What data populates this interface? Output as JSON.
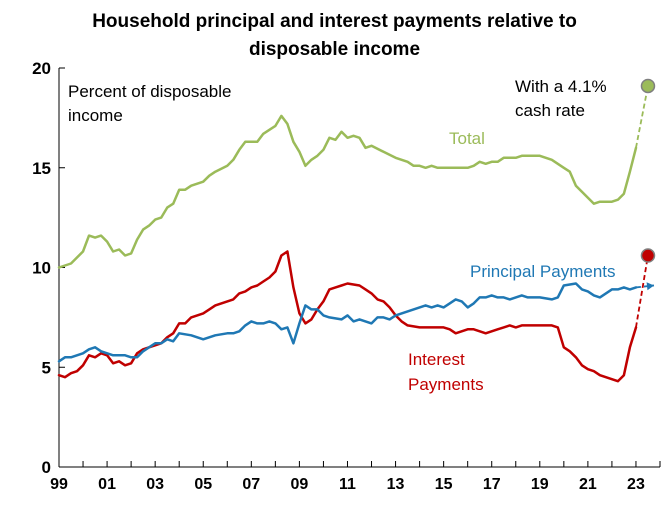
{
  "chart_data": {
    "type": "line",
    "title_line1": "Household principal and interest payments relative to",
    "title_line2": "disposable income",
    "ylabel_line1": "Percent of disposable",
    "ylabel_line2": "income",
    "ylim": [
      0,
      20
    ],
    "yticks": [
      "0",
      "5",
      "10",
      "15",
      "20"
    ],
    "xlim": [
      1999,
      2024
    ],
    "xticks": [
      {
        "label": "99",
        "x": 1999
      },
      {
        "label": "01",
        "x": 2001
      },
      {
        "label": "03",
        "x": 2003
      },
      {
        "label": "05",
        "x": 2005
      },
      {
        "label": "07",
        "x": 2007
      },
      {
        "label": "09",
        "x": 2009
      },
      {
        "label": "11",
        "x": 2011
      },
      {
        "label": "13",
        "x": 2013
      },
      {
        "label": "15",
        "x": 2015
      },
      {
        "label": "17",
        "x": 2017
      },
      {
        "label": "19",
        "x": 2019
      },
      {
        "label": "21",
        "x": 2021
      },
      {
        "label": "23",
        "x": 2023
      }
    ],
    "grid": false,
    "series": [
      {
        "name": "Total",
        "color": "#9bbb59",
        "points": [
          [
            1999.0,
            10.0
          ],
          [
            1999.5,
            10.2
          ],
          [
            2000.0,
            10.8
          ],
          [
            2000.25,
            11.6
          ],
          [
            2000.5,
            11.5
          ],
          [
            2000.75,
            11.6
          ],
          [
            2001.0,
            11.3
          ],
          [
            2001.25,
            10.8
          ],
          [
            2001.5,
            10.9
          ],
          [
            2001.75,
            10.6
          ],
          [
            2002.0,
            10.7
          ],
          [
            2002.25,
            11.4
          ],
          [
            2002.5,
            11.9
          ],
          [
            2002.75,
            12.1
          ],
          [
            2003.0,
            12.4
          ],
          [
            2003.25,
            12.5
          ],
          [
            2003.5,
            13.0
          ],
          [
            2003.75,
            13.2
          ],
          [
            2004.0,
            13.9
          ],
          [
            2004.25,
            13.9
          ],
          [
            2004.5,
            14.1
          ],
          [
            2005.0,
            14.3
          ],
          [
            2005.25,
            14.6
          ],
          [
            2005.5,
            14.8
          ],
          [
            2006.0,
            15.1
          ],
          [
            2006.25,
            15.4
          ],
          [
            2006.5,
            15.9
          ],
          [
            2006.75,
            16.3
          ],
          [
            2007.0,
            16.3
          ],
          [
            2007.25,
            16.3
          ],
          [
            2007.5,
            16.7
          ],
          [
            2007.75,
            16.9
          ],
          [
            2008.0,
            17.1
          ],
          [
            2008.25,
            17.6
          ],
          [
            2008.5,
            17.2
          ],
          [
            2008.75,
            16.3
          ],
          [
            2009.0,
            15.8
          ],
          [
            2009.25,
            15.1
          ],
          [
            2009.5,
            15.4
          ],
          [
            2009.75,
            15.6
          ],
          [
            2010.0,
            15.9
          ],
          [
            2010.25,
            16.5
          ],
          [
            2010.5,
            16.4
          ],
          [
            2010.75,
            16.8
          ],
          [
            2011.0,
            16.5
          ],
          [
            2011.25,
            16.6
          ],
          [
            2011.5,
            16.5
          ],
          [
            2011.75,
            16.0
          ],
          [
            2012.0,
            16.1
          ],
          [
            2012.5,
            15.8
          ],
          [
            2013.0,
            15.5
          ],
          [
            2013.5,
            15.3
          ],
          [
            2013.75,
            15.1
          ],
          [
            2014.0,
            15.1
          ],
          [
            2014.25,
            15.0
          ],
          [
            2014.5,
            15.1
          ],
          [
            2014.75,
            15.0
          ],
          [
            2015.5,
            15.0
          ],
          [
            2016.0,
            15.0
          ],
          [
            2016.25,
            15.1
          ],
          [
            2016.5,
            15.3
          ],
          [
            2016.75,
            15.2
          ],
          [
            2017.0,
            15.3
          ],
          [
            2017.25,
            15.3
          ],
          [
            2017.5,
            15.5
          ],
          [
            2018.0,
            15.5
          ],
          [
            2018.25,
            15.6
          ],
          [
            2019.0,
            15.6
          ],
          [
            2019.25,
            15.5
          ],
          [
            2019.5,
            15.4
          ],
          [
            2019.75,
            15.2
          ],
          [
            2020.0,
            15.0
          ],
          [
            2020.25,
            14.8
          ],
          [
            2020.5,
            14.1
          ],
          [
            2020.75,
            13.8
          ],
          [
            2021.0,
            13.5
          ],
          [
            2021.25,
            13.2
          ],
          [
            2021.5,
            13.3
          ],
          [
            2022.0,
            13.3
          ],
          [
            2022.25,
            13.4
          ],
          [
            2022.5,
            13.7
          ],
          [
            2022.75,
            14.8
          ],
          [
            2023.0,
            16.0
          ]
        ],
        "projection_end": [
          2023.5,
          19.1
        ]
      },
      {
        "name": "Interest Payments",
        "color": "#c00000",
        "points": [
          [
            1999.0,
            4.6
          ],
          [
            1999.25,
            4.5
          ],
          [
            1999.5,
            4.7
          ],
          [
            1999.75,
            4.8
          ],
          [
            2000.0,
            5.1
          ],
          [
            2000.25,
            5.6
          ],
          [
            2000.5,
            5.5
          ],
          [
            2000.75,
            5.7
          ],
          [
            2001.0,
            5.6
          ],
          [
            2001.25,
            5.2
          ],
          [
            2001.5,
            5.3
          ],
          [
            2001.75,
            5.1
          ],
          [
            2002.0,
            5.2
          ],
          [
            2002.25,
            5.7
          ],
          [
            2002.5,
            5.9
          ],
          [
            2002.75,
            6.0
          ],
          [
            2003.0,
            6.1
          ],
          [
            2003.25,
            6.2
          ],
          [
            2003.5,
            6.5
          ],
          [
            2003.75,
            6.7
          ],
          [
            2004.0,
            7.2
          ],
          [
            2004.25,
            7.2
          ],
          [
            2004.5,
            7.5
          ],
          [
            2005.0,
            7.7
          ],
          [
            2005.25,
            7.9
          ],
          [
            2005.5,
            8.1
          ],
          [
            2006.0,
            8.3
          ],
          [
            2006.25,
            8.4
          ],
          [
            2006.5,
            8.7
          ],
          [
            2006.75,
            8.8
          ],
          [
            2007.0,
            9.0
          ],
          [
            2007.25,
            9.1
          ],
          [
            2007.5,
            9.3
          ],
          [
            2007.75,
            9.5
          ],
          [
            2008.0,
            9.8
          ],
          [
            2008.25,
            10.6
          ],
          [
            2008.5,
            10.8
          ],
          [
            2008.75,
            9.0
          ],
          [
            2009.0,
            7.7
          ],
          [
            2009.25,
            7.2
          ],
          [
            2009.5,
            7.4
          ],
          [
            2009.75,
            7.9
          ],
          [
            2010.0,
            8.3
          ],
          [
            2010.25,
            8.9
          ],
          [
            2010.5,
            9.0
          ],
          [
            2010.75,
            9.1
          ],
          [
            2011.0,
            9.2
          ],
          [
            2011.5,
            9.1
          ],
          [
            2011.75,
            8.9
          ],
          [
            2012.0,
            8.7
          ],
          [
            2012.25,
            8.4
          ],
          [
            2012.5,
            8.3
          ],
          [
            2012.75,
            8.0
          ],
          [
            2013.0,
            7.6
          ],
          [
            2013.25,
            7.3
          ],
          [
            2013.5,
            7.1
          ],
          [
            2014.0,
            7.0
          ],
          [
            2014.5,
            7.0
          ],
          [
            2015.0,
            7.0
          ],
          [
            2015.25,
            6.9
          ],
          [
            2015.5,
            6.7
          ],
          [
            2015.75,
            6.8
          ],
          [
            2016.0,
            6.9
          ],
          [
            2016.25,
            6.9
          ],
          [
            2016.5,
            6.8
          ],
          [
            2016.75,
            6.7
          ],
          [
            2017.0,
            6.8
          ],
          [
            2017.25,
            6.9
          ],
          [
            2017.5,
            7.0
          ],
          [
            2017.75,
            7.1
          ],
          [
            2018.0,
            7.0
          ],
          [
            2018.25,
            7.1
          ],
          [
            2019.0,
            7.1
          ],
          [
            2019.5,
            7.1
          ],
          [
            2019.75,
            7.0
          ],
          [
            2020.0,
            6.0
          ],
          [
            2020.25,
            5.8
          ],
          [
            2020.5,
            5.5
          ],
          [
            2020.75,
            5.1
          ],
          [
            2021.0,
            4.9
          ],
          [
            2021.25,
            4.8
          ],
          [
            2021.5,
            4.6
          ],
          [
            2021.75,
            4.5
          ],
          [
            2022.0,
            4.4
          ],
          [
            2022.25,
            4.3
          ],
          [
            2022.5,
            4.6
          ],
          [
            2022.75,
            6.0
          ],
          [
            2023.0,
            7.0
          ]
        ],
        "projection_end": [
          2023.5,
          10.6
        ]
      },
      {
        "name": "Principal Payments",
        "color": "#1f78b4",
        "points": [
          [
            1999.0,
            5.3
          ],
          [
            1999.25,
            5.5
          ],
          [
            1999.5,
            5.5
          ],
          [
            2000.0,
            5.7
          ],
          [
            2000.25,
            5.9
          ],
          [
            2000.5,
            6.0
          ],
          [
            2000.75,
            5.8
          ],
          [
            2001.0,
            5.7
          ],
          [
            2001.25,
            5.6
          ],
          [
            2001.75,
            5.6
          ],
          [
            2002.0,
            5.5
          ],
          [
            2002.25,
            5.5
          ],
          [
            2002.5,
            5.8
          ],
          [
            2002.75,
            6.0
          ],
          [
            2003.0,
            6.2
          ],
          [
            2003.25,
            6.2
          ],
          [
            2003.5,
            6.4
          ],
          [
            2003.75,
            6.3
          ],
          [
            2004.0,
            6.7
          ],
          [
            2004.5,
            6.6
          ],
          [
            2004.75,
            6.5
          ],
          [
            2005.0,
            6.4
          ],
          [
            2005.5,
            6.6
          ],
          [
            2006.0,
            6.7
          ],
          [
            2006.25,
            6.7
          ],
          [
            2006.5,
            6.8
          ],
          [
            2006.75,
            7.1
          ],
          [
            2007.0,
            7.3
          ],
          [
            2007.25,
            7.2
          ],
          [
            2007.5,
            7.2
          ],
          [
            2007.75,
            7.3
          ],
          [
            2008.0,
            7.2
          ],
          [
            2008.25,
            6.9
          ],
          [
            2008.5,
            7.0
          ],
          [
            2008.75,
            6.2
          ],
          [
            2009.0,
            7.2
          ],
          [
            2009.25,
            8.1
          ],
          [
            2009.5,
            7.9
          ],
          [
            2009.75,
            7.9
          ],
          [
            2010.0,
            7.6
          ],
          [
            2010.25,
            7.5
          ],
          [
            2010.75,
            7.4
          ],
          [
            2011.0,
            7.6
          ],
          [
            2011.25,
            7.3
          ],
          [
            2011.5,
            7.4
          ],
          [
            2011.75,
            7.3
          ],
          [
            2012.0,
            7.2
          ],
          [
            2012.25,
            7.5
          ],
          [
            2012.5,
            7.5
          ],
          [
            2012.75,
            7.4
          ],
          [
            2013.0,
            7.6
          ],
          [
            2013.25,
            7.7
          ],
          [
            2013.5,
            7.8
          ],
          [
            2013.75,
            7.9
          ],
          [
            2014.0,
            8.0
          ],
          [
            2014.25,
            8.1
          ],
          [
            2014.5,
            8.0
          ],
          [
            2014.75,
            8.1
          ],
          [
            2015.0,
            8.0
          ],
          [
            2015.25,
            8.2
          ],
          [
            2015.5,
            8.4
          ],
          [
            2015.75,
            8.3
          ],
          [
            2016.0,
            8.0
          ],
          [
            2016.25,
            8.2
          ],
          [
            2016.5,
            8.5
          ],
          [
            2016.75,
            8.5
          ],
          [
            2017.0,
            8.6
          ],
          [
            2017.25,
            8.5
          ],
          [
            2017.5,
            8.5
          ],
          [
            2017.75,
            8.4
          ],
          [
            2018.0,
            8.5
          ],
          [
            2018.25,
            8.6
          ],
          [
            2018.5,
            8.5
          ],
          [
            2019.0,
            8.5
          ],
          [
            2019.5,
            8.4
          ],
          [
            2019.75,
            8.5
          ],
          [
            2020.0,
            9.1
          ],
          [
            2020.5,
            9.2
          ],
          [
            2020.75,
            8.9
          ],
          [
            2021.0,
            8.8
          ],
          [
            2021.25,
            8.6
          ],
          [
            2021.5,
            8.5
          ],
          [
            2021.75,
            8.7
          ],
          [
            2022.0,
            8.9
          ],
          [
            2022.25,
            8.9
          ],
          [
            2022.5,
            9.0
          ],
          [
            2022.75,
            8.9
          ],
          [
            2023.0,
            9.0
          ]
        ],
        "projection_end": [
          2023.75,
          9.1
        ]
      }
    ],
    "annotations": {
      "total_label": "Total",
      "principal_label": "Principal Payments",
      "interest_label_line1": "Interest",
      "interest_label_line2": "Payments",
      "cash_rate_line1": "With a 4.1%",
      "cash_rate_line2": "cash rate"
    }
  }
}
